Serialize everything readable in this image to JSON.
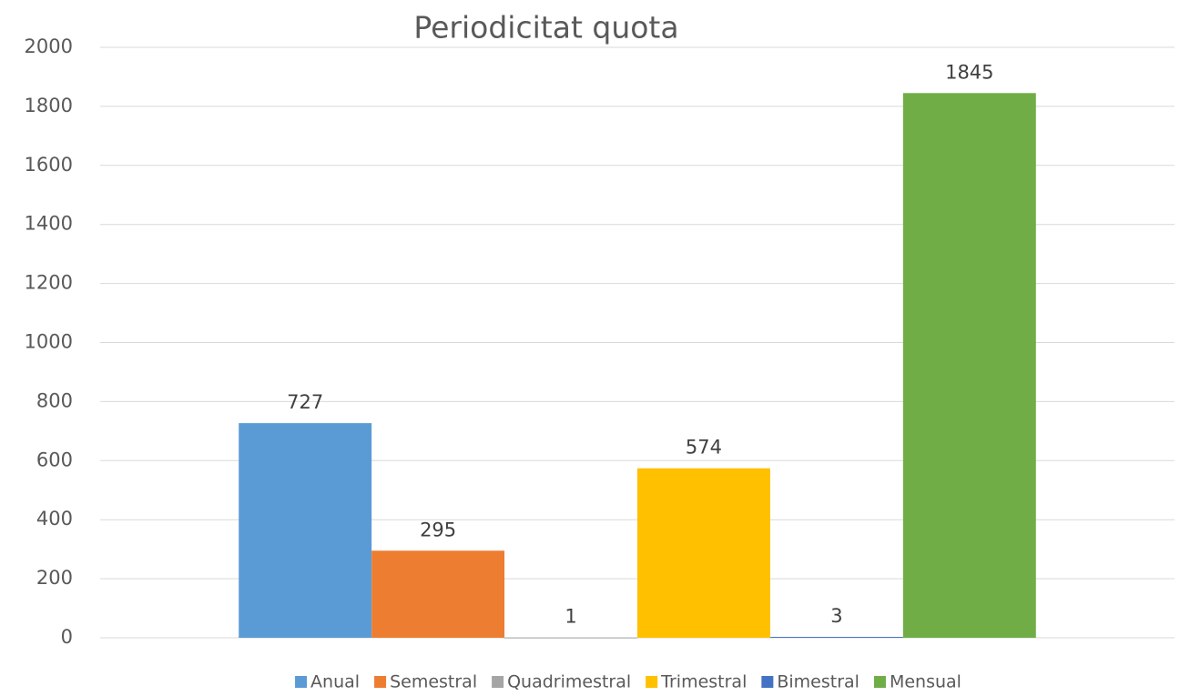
{
  "chart_data": {
    "type": "bar",
    "title": "Periodicitat quota",
    "series": [
      {
        "name": "Anual",
        "color": "#5b9bd5",
        "values": [
          727
        ]
      },
      {
        "name": "Semestral",
        "color": "#ed7d31",
        "values": [
          295
        ]
      },
      {
        "name": "Quadrimestral",
        "color": "#a5a5a5",
        "values": [
          1
        ]
      },
      {
        "name": "Trimestral",
        "color": "#ffc000",
        "values": [
          574
        ]
      },
      {
        "name": "Bimestral",
        "color": "#4472c4",
        "values": [
          3
        ]
      },
      {
        "name": "Mensual",
        "color": "#70ad47",
        "values": [
          1845
        ]
      }
    ],
    "ylim": [
      0,
      2000
    ],
    "yticks": [
      0,
      200,
      400,
      600,
      800,
      1000,
      1200,
      1400,
      1600,
      1800,
      2000
    ],
    "grid": true,
    "legend": "bottom"
  }
}
